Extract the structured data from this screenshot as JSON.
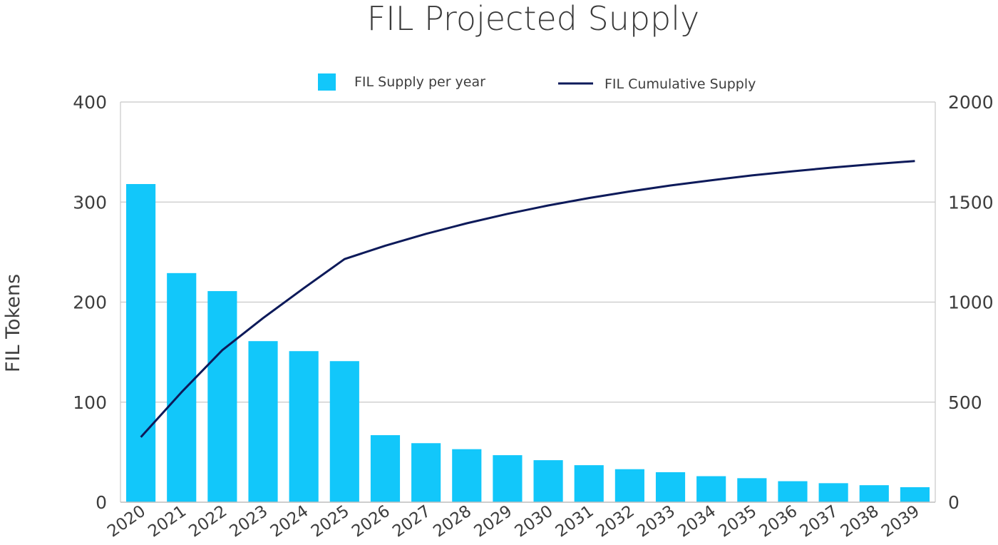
{
  "chart_data": {
    "type": "bar",
    "title": "FIL Projected Supply",
    "ylabel": "FIL Tokens",
    "y2label": "",
    "categories": [
      "2020",
      "2021",
      "2022",
      "2023",
      "2024",
      "2025",
      "2026",
      "2027",
      "2028",
      "2029",
      "2030",
      "2031",
      "2032",
      "2033",
      "2034",
      "2035",
      "2036",
      "2037",
      "2038",
      "2039"
    ],
    "series": [
      {
        "name": "FIL Supply per year",
        "type": "bar",
        "axis": "left",
        "color": "#12c7fa",
        "values": [
          318,
          229,
          211,
          161,
          151,
          141,
          67,
          59,
          53,
          47,
          42,
          37,
          33,
          30,
          26,
          24,
          21,
          19,
          17,
          15
        ]
      },
      {
        "name": "FIL Cumulative Supply",
        "type": "line",
        "axis": "right",
        "color": "#0d1a5a",
        "values": [
          325,
          550,
          760,
          920,
          1070,
          1215,
          1282,
          1341,
          1394,
          1441,
          1483,
          1520,
          1553,
          1583,
          1609,
          1633,
          1654,
          1673,
          1690,
          1705
        ]
      }
    ],
    "ylim": [
      0,
      400
    ],
    "y2lim": [
      0,
      2000
    ],
    "yticks": [
      "0",
      "100",
      "200",
      "300",
      "400"
    ],
    "y2ticks": [
      "0",
      "500",
      "1000",
      "1500",
      "2000"
    ],
    "grid": true,
    "legend_position": "top"
  }
}
